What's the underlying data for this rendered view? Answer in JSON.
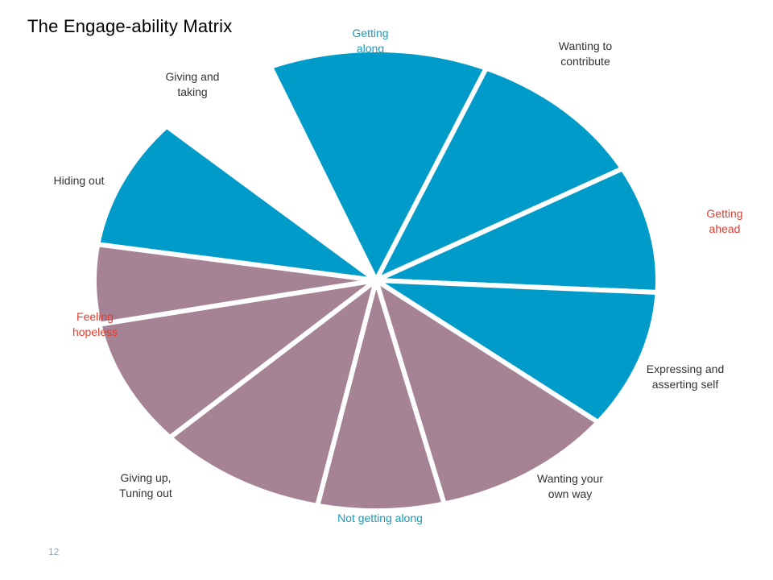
{
  "title": "The Engage-ability Matrix",
  "page_number": "12",
  "colors": {
    "positive": "#009bc8",
    "negative": "#a58394",
    "label_default": "#333333",
    "label_teal": "#1a9ab8",
    "label_red": "#e63b2e"
  },
  "segments": [
    {
      "id": "getting-along",
      "label": "Getting\nalong",
      "group": "positive",
      "label_color": "teal"
    },
    {
      "id": "wanting-to-contribute",
      "label": "Wanting to\ncontribute",
      "group": "positive",
      "label_color": "default"
    },
    {
      "id": "getting-ahead",
      "label": "Getting\nahead",
      "group": "positive",
      "label_color": "red"
    },
    {
      "id": "expressing-and-asserting-self",
      "label": "Expressing and\nasserting self",
      "group": "positive",
      "label_color": "default"
    },
    {
      "id": "wanting-your-own-way",
      "label": "Wanting your\nown way",
      "group": "negative",
      "label_color": "default"
    },
    {
      "id": "not-getting-along",
      "label": "Not getting along",
      "group": "negative",
      "label_color": "teal"
    },
    {
      "id": "giving-up-tuning-out",
      "label": "Giving up,\nTuning out",
      "group": "negative",
      "label_color": "default"
    },
    {
      "id": "feeling-hopeless",
      "label": "Feeling\nhopeless",
      "group": "negative",
      "label_color": "red"
    },
    {
      "id": "hiding-out",
      "label": "Hiding out",
      "group": "negative",
      "label_color": "default"
    },
    {
      "id": "giving-and-taking",
      "label": "Giving and\ntaking",
      "group": "positive",
      "label_color": "default"
    }
  ]
}
